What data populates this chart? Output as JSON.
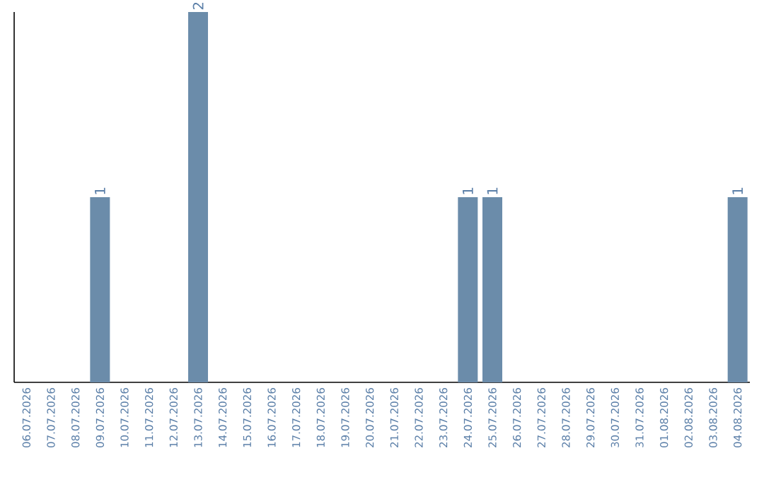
{
  "chart_data": {
    "type": "bar",
    "categories": [
      "06.07.2026",
      "07.07.2026",
      "08.07.2026",
      "09.07.2026",
      "10.07.2026",
      "11.07.2026",
      "12.07.2026",
      "13.07.2026",
      "14.07.2026",
      "15.07.2026",
      "16.07.2026",
      "17.07.2026",
      "18.07.2026",
      "19.07.2026",
      "20.07.2026",
      "21.07.2026",
      "22.07.2026",
      "23.07.2026",
      "24.07.2026",
      "25.07.2026",
      "26.07.2026",
      "27.07.2026",
      "28.07.2026",
      "29.07.2026",
      "30.07.2026",
      "31.07.2026",
      "01.08.2026",
      "02.08.2026",
      "03.08.2026",
      "04.08.2026"
    ],
    "values": [
      0,
      0,
      0,
      1,
      0,
      0,
      0,
      2,
      0,
      0,
      0,
      0,
      0,
      0,
      0,
      0,
      0,
      0,
      1,
      1,
      0,
      0,
      0,
      0,
      0,
      0,
      0,
      0,
      0,
      1
    ],
    "value_labels": [
      null,
      null,
      null,
      "1",
      null,
      null,
      null,
      "2",
      null,
      null,
      null,
      null,
      null,
      null,
      null,
      null,
      null,
      null,
      "1",
      "1",
      null,
      null,
      null,
      null,
      null,
      null,
      null,
      null,
      null,
      "1"
    ],
    "color": "#6b8caa"
  }
}
